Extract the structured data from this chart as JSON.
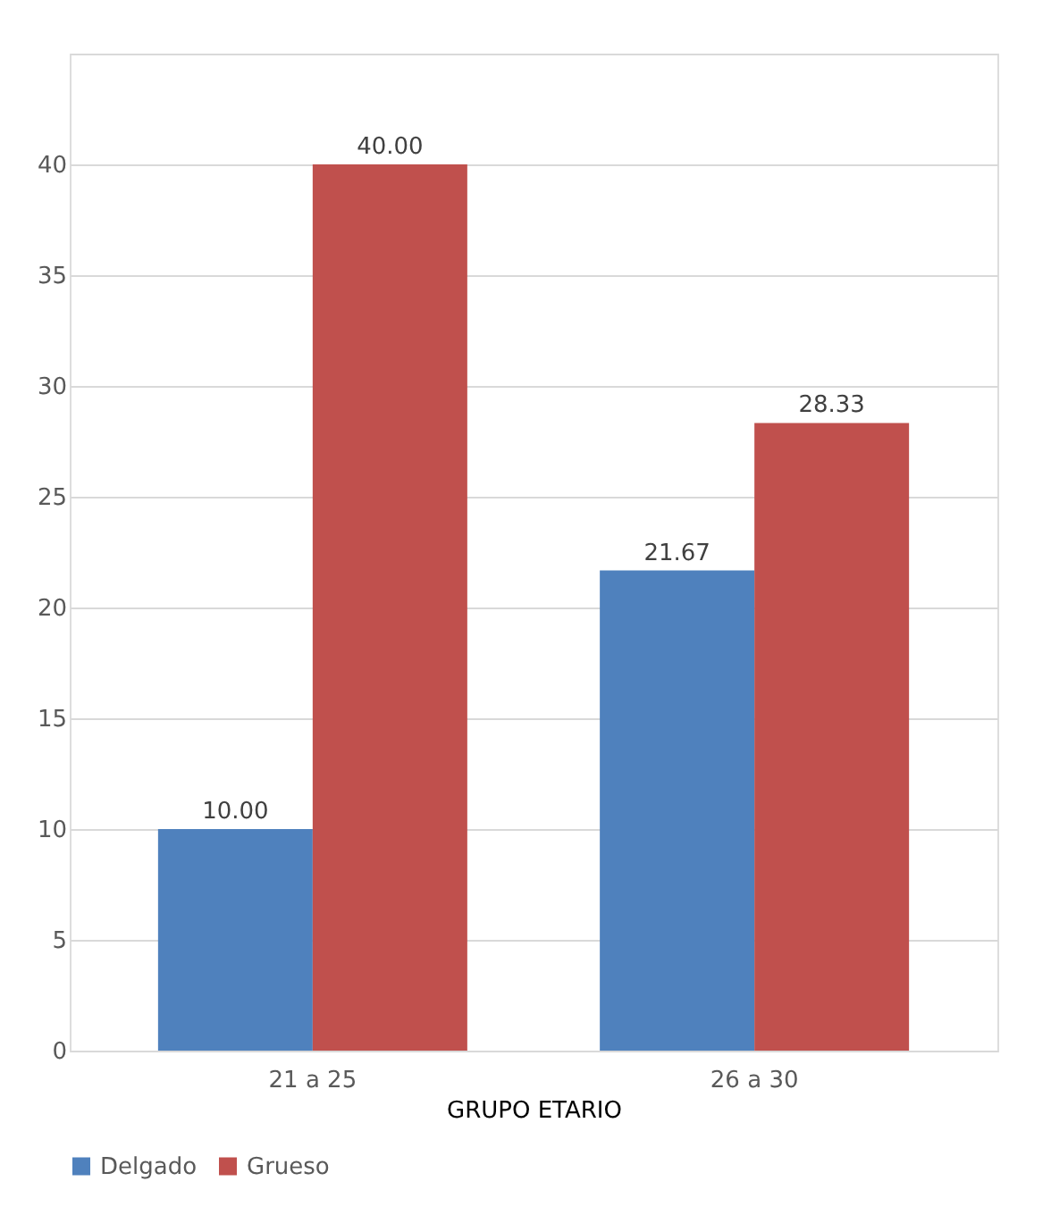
{
  "chart_data": {
    "type": "bar",
    "xlabel": "GRUPO ETARIO",
    "categories": [
      "21 a 25",
      "26 a 30"
    ],
    "series": [
      {
        "name": "Delgado",
        "color": "#4f81bd",
        "values": [
          10.0,
          21.67
        ],
        "value_labels": [
          "10.00",
          "21.67"
        ]
      },
      {
        "name": "Grueso",
        "color": "#c0504d",
        "values": [
          40.0,
          28.33
        ],
        "value_labels": [
          "40.00",
          "28.33"
        ]
      }
    ],
    "ylim": [
      0,
      45
    ],
    "yticks": [
      0,
      5,
      10,
      15,
      20,
      25,
      30,
      35,
      40,
      {
        "value": 45,
        "label": null
      }
    ],
    "grid": "y",
    "legend": "bottom"
  }
}
